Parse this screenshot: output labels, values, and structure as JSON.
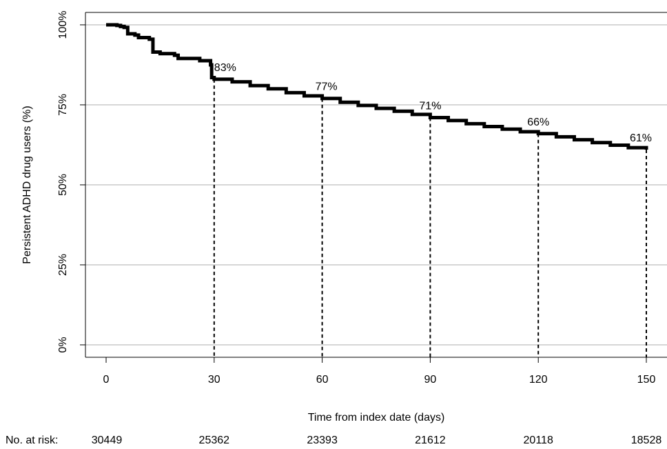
{
  "chart_data": {
    "type": "line",
    "xlabel": "Time from index date (days)",
    "ylabel": "Persistent ADHD drug users (%)",
    "xlim": [
      0,
      150
    ],
    "ylim": [
      0,
      100
    ],
    "x_ticks": [
      0,
      30,
      60,
      90,
      120,
      150
    ],
    "x_tick_labels": [
      "0",
      "30",
      "60",
      "90",
      "120",
      "150"
    ],
    "y_ticks": [
      0,
      25,
      50,
      75,
      100
    ],
    "y_tick_labels": [
      "0%",
      "25%",
      "50%",
      "75%",
      "100%"
    ],
    "grid": "horizontal",
    "series": [
      {
        "points": [
          [
            0,
            100
          ],
          [
            3,
            99.8
          ],
          [
            4,
            99.5
          ],
          [
            5,
            99.2
          ],
          [
            6,
            97.2
          ],
          [
            8,
            96.8
          ],
          [
            9,
            96.0
          ],
          [
            12,
            95.5
          ],
          [
            13,
            91.5
          ],
          [
            15,
            91.0
          ],
          [
            19,
            90.5
          ],
          [
            20,
            89.5
          ],
          [
            26,
            88.8
          ],
          [
            29,
            87.5
          ],
          [
            29.3,
            83.5
          ],
          [
            30,
            83
          ],
          [
            35,
            82.2
          ],
          [
            40,
            81.0
          ],
          [
            45,
            80.0
          ],
          [
            50,
            78.8
          ],
          [
            55,
            77.8
          ],
          [
            60,
            77
          ],
          [
            65,
            75.8
          ],
          [
            70,
            74.8
          ],
          [
            75,
            73.9
          ],
          [
            80,
            73.0
          ],
          [
            85,
            72.0
          ],
          [
            90,
            71
          ],
          [
            95,
            70.1
          ],
          [
            100,
            69.1
          ],
          [
            105,
            68.2
          ],
          [
            110,
            67.4
          ],
          [
            115,
            66.6
          ],
          [
            120,
            66
          ],
          [
            125,
            65.0
          ],
          [
            130,
            64.1
          ],
          [
            135,
            63.2
          ],
          [
            140,
            62.4
          ],
          [
            145,
            61.6
          ],
          [
            150,
            61
          ]
        ]
      }
    ],
    "annotations": [
      {
        "x": 30,
        "y": 83,
        "label": "83%"
      },
      {
        "x": 60,
        "y": 77,
        "label": "77%"
      },
      {
        "x": 90,
        "y": 71,
        "label": "71%"
      },
      {
        "x": 120,
        "y": 66,
        "label": "66%"
      },
      {
        "x": 150,
        "y": 61,
        "label": "61%"
      }
    ],
    "risk_table": {
      "label": "No. at risk:",
      "values": [
        "30449",
        "25362",
        "23393",
        "21612",
        "20118",
        "18528"
      ]
    }
  }
}
